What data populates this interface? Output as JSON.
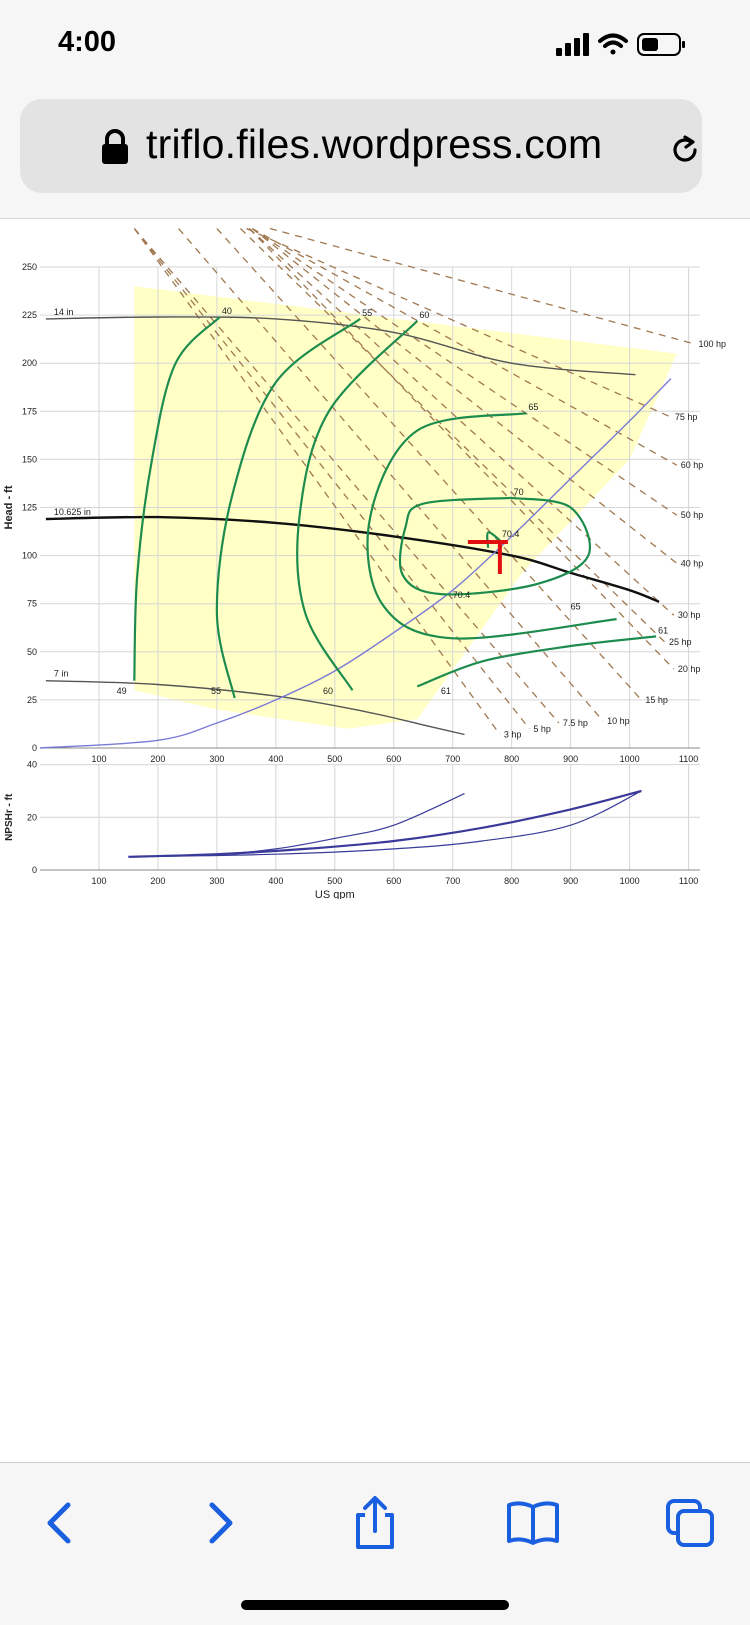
{
  "status_bar": {
    "time": "4:00",
    "icons": [
      "cellular-signal-icon",
      "wifi-icon",
      "battery-icon"
    ]
  },
  "browser": {
    "url": "triflo.files.wordpress.com",
    "icons": [
      "lock-icon",
      "reload-icon"
    ],
    "toolbar": [
      "back-icon",
      "forward-icon",
      "share-icon",
      "bookmarks-icon",
      "tabs-icon"
    ]
  },
  "colors": {
    "efficiency_curves": "#1e8c4e",
    "power_lines": "#a07850",
    "system_curve": "#7a7ad6",
    "impeller_curves": "#555555",
    "selected_impeller": "#111111",
    "operating_region": "#ffffc6",
    "duty_point_marker": "#e01010",
    "npshr_curves": "#3a3a9a",
    "ios_blue": "#1a5fe0"
  },
  "chart_data": [
    {
      "type": "line",
      "title": "",
      "xlabel": "",
      "ylabel": "Head - ft",
      "xlim": [
        0,
        1100
      ],
      "ylim": [
        0,
        250
      ],
      "x_ticks": [
        "100",
        "200",
        "300",
        "400",
        "500",
        "600",
        "700",
        "800",
        "900",
        "1000",
        "1100"
      ],
      "y_ticks": [
        "0",
        "25",
        "50",
        "75",
        "100",
        "125",
        "150",
        "175",
        "200",
        "225",
        "250"
      ],
      "grid": true,
      "impeller_curves": [
        {
          "name": "14 in",
          "points": [
            [
              10,
              223
            ],
            [
              200,
              224
            ],
            [
              400,
              223
            ],
            [
              600,
              216
            ],
            [
              800,
              200
            ],
            [
              1010,
              194
            ]
          ]
        },
        {
          "name": "10.625 in",
          "selected": true,
          "points": [
            [
              10,
              119
            ],
            [
              200,
              120
            ],
            [
              400,
              117
            ],
            [
              600,
              110
            ],
            [
              800,
              100
            ],
            [
              900,
              91
            ],
            [
              1000,
              82
            ],
            [
              1050,
              76
            ]
          ]
        },
        {
          "name": "7 in",
          "points": [
            [
              10,
              35
            ],
            [
              200,
              33
            ],
            [
              400,
              27
            ],
            [
              550,
              19
            ],
            [
              650,
              12
            ],
            [
              720,
              7
            ]
          ]
        }
      ],
      "efficiency_contours": [
        {
          "label": "40",
          "points": [
            [
              160,
              35
            ],
            [
              165,
              90
            ],
            [
              190,
              150
            ],
            [
              230,
              200
            ],
            [
              305,
              224
            ]
          ]
        },
        {
          "label": "55",
          "points": [
            [
              330,
              26
            ],
            [
              300,
              70
            ],
            [
              325,
              130
            ],
            [
              400,
              190
            ],
            [
              543,
              223
            ]
          ]
        },
        {
          "label": "60",
          "points": [
            [
              530,
              30
            ],
            [
              450,
              70
            ],
            [
              440,
              120
            ],
            [
              490,
              175
            ],
            [
              640,
              222
            ]
          ]
        },
        {
          "label": "65",
          "points": [
            [
              978,
              67
            ],
            [
              700,
              57
            ],
            [
              580,
              75
            ],
            [
              560,
              120
            ],
            [
              640,
              165
            ],
            [
              825,
              174
            ]
          ]
        },
        {
          "label": "70",
          "points": [
            [
              800,
              130
            ],
            [
              650,
              127
            ],
            [
              620,
              115
            ],
            [
              615,
              90
            ],
            [
              680,
              80
            ],
            [
              840,
              85
            ],
            [
              930,
              100
            ],
            [
              900,
              125
            ],
            [
              800,
              130
            ]
          ]
        },
        {
          "label": "70.4",
          "points": [
            [
              760,
              104
            ],
            [
              760,
              112
            ],
            [
              780,
              108
            ]
          ]
        },
        {
          "label": "61",
          "points": [
            [
              640,
              32
            ],
            [
              750,
              45
            ],
            [
              900,
              53
            ],
            [
              1045,
              58
            ]
          ]
        }
      ],
      "efficiency_labels": [
        "40",
        "55",
        "60",
        "65",
        "70",
        "70.4",
        "70.4",
        "70.4",
        "65",
        "61",
        "49",
        "55",
        "60",
        "61"
      ],
      "power_lines": [
        {
          "name": "3 hp",
          "end": [
            780,
            7
          ]
        },
        {
          "name": "5 hp",
          "end": [
            830,
            10
          ]
        },
        {
          "name": "7.5 hp",
          "end": [
            880,
            13
          ]
        },
        {
          "name": "10 hp",
          "end": [
            955,
            14
          ]
        },
        {
          "name": "15 hp",
          "end": [
            1020,
            25
          ]
        },
        {
          "name": "20 hp",
          "end": [
            1075,
            41
          ]
        },
        {
          "name": "25 hp",
          "end": [
            1060,
            55
          ]
        },
        {
          "name": "30 hp",
          "end": [
            1075,
            69
          ]
        },
        {
          "name": "40 hp",
          "end": [
            1080,
            96
          ]
        },
        {
          "name": "50 hp",
          "end": [
            1080,
            121
          ]
        },
        {
          "name": "60 hp",
          "end": [
            1080,
            147
          ]
        },
        {
          "name": "75 hp",
          "end": [
            1070,
            172
          ]
        },
        {
          "name": "100 hp",
          "end": [
            1110,
            210
          ]
        }
      ],
      "system_curve": [
        [
          0,
          0
        ],
        [
          200,
          4
        ],
        [
          300,
          13
        ],
        [
          400,
          25
        ],
        [
          500,
          40
        ],
        [
          600,
          60
        ],
        [
          700,
          82
        ],
        [
          800,
          110
        ],
        [
          900,
          140
        ],
        [
          1000,
          170
        ],
        [
          1070,
          192
        ]
      ],
      "duty_point": [
        780,
        106
      ],
      "operating_region": [
        [
          160,
          240
        ],
        [
          1080,
          205
        ],
        [
          1000,
          150
        ],
        [
          820,
          92
        ],
        [
          640,
          15
        ],
        [
          520,
          10
        ],
        [
          300,
          20
        ],
        [
          160,
          30
        ]
      ]
    },
    {
      "type": "line",
      "title": "",
      "xlabel": "US gpm",
      "ylabel": "NPSHr - ft",
      "xlim": [
        0,
        1100
      ],
      "ylim": [
        0,
        40
      ],
      "x_ticks": [
        "100",
        "200",
        "300",
        "400",
        "500",
        "600",
        "700",
        "800",
        "900",
        "1000",
        "1100"
      ],
      "y_ticks": [
        "0",
        "20",
        "40"
      ],
      "grid": true,
      "series": [
        {
          "points": [
            [
              150,
              5
            ],
            [
              300,
              6
            ],
            [
              400,
              8
            ],
            [
              500,
              12
            ],
            [
              600,
              17
            ],
            [
              720,
              29
            ]
          ]
        },
        {
          "points": [
            [
              150,
              5
            ],
            [
              300,
              6
            ],
            [
              450,
              8
            ],
            [
              600,
              11
            ],
            [
              750,
              16
            ],
            [
              900,
              23
            ],
            [
              1020,
              30
            ]
          ],
          "bold": true
        },
        {
          "points": [
            [
              150,
              5
            ],
            [
              400,
              6
            ],
            [
              600,
              8
            ],
            [
              750,
              11
            ],
            [
              900,
              17
            ],
            [
              1020,
              30
            ]
          ]
        }
      ]
    }
  ]
}
